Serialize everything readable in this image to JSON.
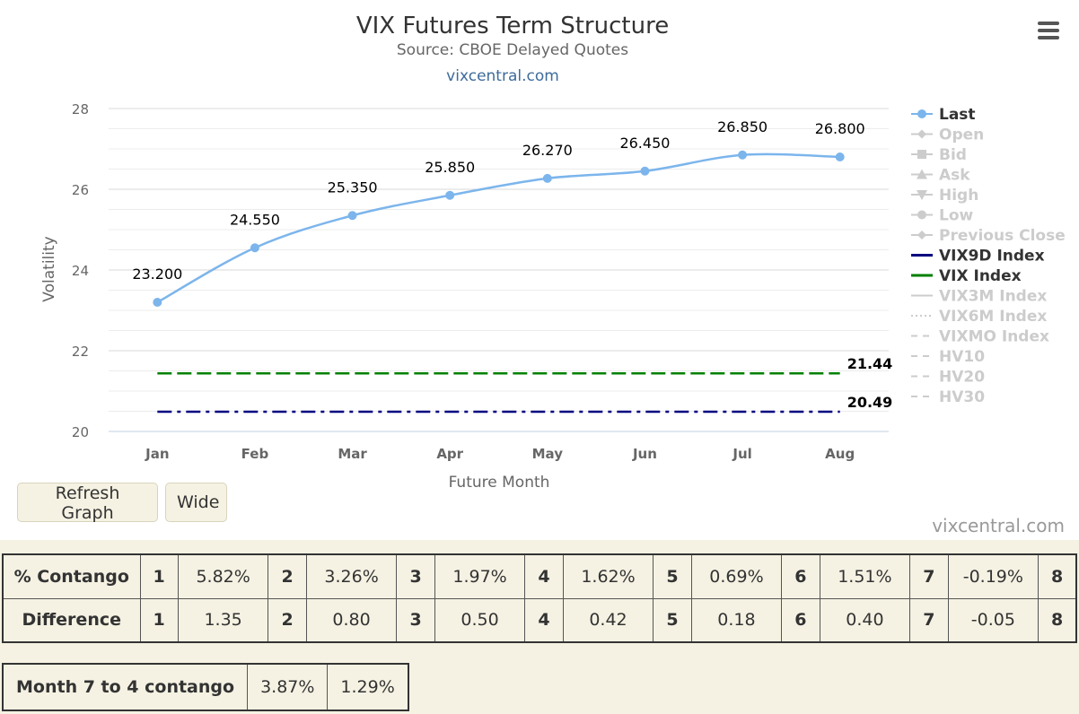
{
  "chart": {
    "title": "VIX Futures Term Structure",
    "subtitle": "Source: CBOE Delayed Quotes",
    "link": "vixcentral.com",
    "credit": "vixcentral.com",
    "menu_icon": "hamburger-menu-icon"
  },
  "chart_data": {
    "type": "line",
    "xlabel": "Future Month",
    "ylabel": "Volatility",
    "ylim": [
      20,
      28
    ],
    "yticks": [
      20,
      22,
      24,
      26,
      28
    ],
    "categories": [
      "Jan",
      "Feb",
      "Mar",
      "Apr",
      "May",
      "Jun",
      "Jul",
      "Aug"
    ],
    "grid": true,
    "legend_position": "right",
    "series": [
      {
        "name": "Last",
        "values": [
          23.2,
          24.55,
          25.35,
          25.85,
          26.27,
          26.45,
          26.85,
          26.8
        ],
        "labels": [
          "23.200",
          "24.550",
          "25.350",
          "25.850",
          "26.270",
          "26.450",
          "26.850",
          "26.800"
        ],
        "color": "#7cb5ec"
      },
      {
        "name": "VIX9D Index",
        "value": 20.49,
        "label": "20.49",
        "color": "#000080"
      },
      {
        "name": "VIX Index",
        "value": 21.44,
        "label": "21.44",
        "color": "#008000"
      }
    ],
    "legend": [
      {
        "name": "Last",
        "active": true,
        "symbol": "circle",
        "color": "#7cb5ec"
      },
      {
        "name": "Open",
        "active": false,
        "symbol": "diamond"
      },
      {
        "name": "Bid",
        "active": false,
        "symbol": "square"
      },
      {
        "name": "Ask",
        "active": false,
        "symbol": "triangle"
      },
      {
        "name": "High",
        "active": false,
        "symbol": "triangle-down"
      },
      {
        "name": "Low",
        "active": false,
        "symbol": "circle"
      },
      {
        "name": "Previous Close",
        "active": false,
        "symbol": "diamond"
      },
      {
        "name": "VIX9D Index",
        "active": true,
        "symbol": "line",
        "color": "#000080"
      },
      {
        "name": "VIX Index",
        "active": true,
        "symbol": "line",
        "color": "#008000"
      },
      {
        "name": "VIX3M Index",
        "active": false,
        "symbol": "line"
      },
      {
        "name": "VIX6M Index",
        "active": false,
        "symbol": "dotted"
      },
      {
        "name": "VIXMO Index",
        "active": false,
        "symbol": "dashed"
      },
      {
        "name": "HV10",
        "active": false,
        "symbol": "dashed"
      },
      {
        "name": "HV20",
        "active": false,
        "symbol": "dashed"
      },
      {
        "name": "HV30",
        "active": false,
        "symbol": "dashed"
      }
    ]
  },
  "buttons": {
    "refresh": "Refresh Graph",
    "wide": "Wide"
  },
  "contango_table": {
    "rows": [
      {
        "label": "% Contango",
        "cells": [
          [
            "1",
            "5.82%"
          ],
          [
            "2",
            "3.26%"
          ],
          [
            "3",
            "1.97%"
          ],
          [
            "4",
            "1.62%"
          ],
          [
            "5",
            "0.69%"
          ],
          [
            "6",
            "1.51%"
          ],
          [
            "7",
            "-0.19%"
          ],
          [
            "8"
          ]
        ]
      },
      {
        "label": "Difference",
        "cells": [
          [
            "1",
            "1.35"
          ],
          [
            "2",
            "0.80"
          ],
          [
            "3",
            "0.50"
          ],
          [
            "4",
            "0.42"
          ],
          [
            "5",
            "0.18"
          ],
          [
            "6",
            "0.40"
          ],
          [
            "7",
            "-0.05"
          ],
          [
            "8"
          ]
        ]
      }
    ]
  },
  "month_table": {
    "label": "Month 7 to 4 contango",
    "values": [
      "3.87%",
      "1.29%"
    ]
  }
}
